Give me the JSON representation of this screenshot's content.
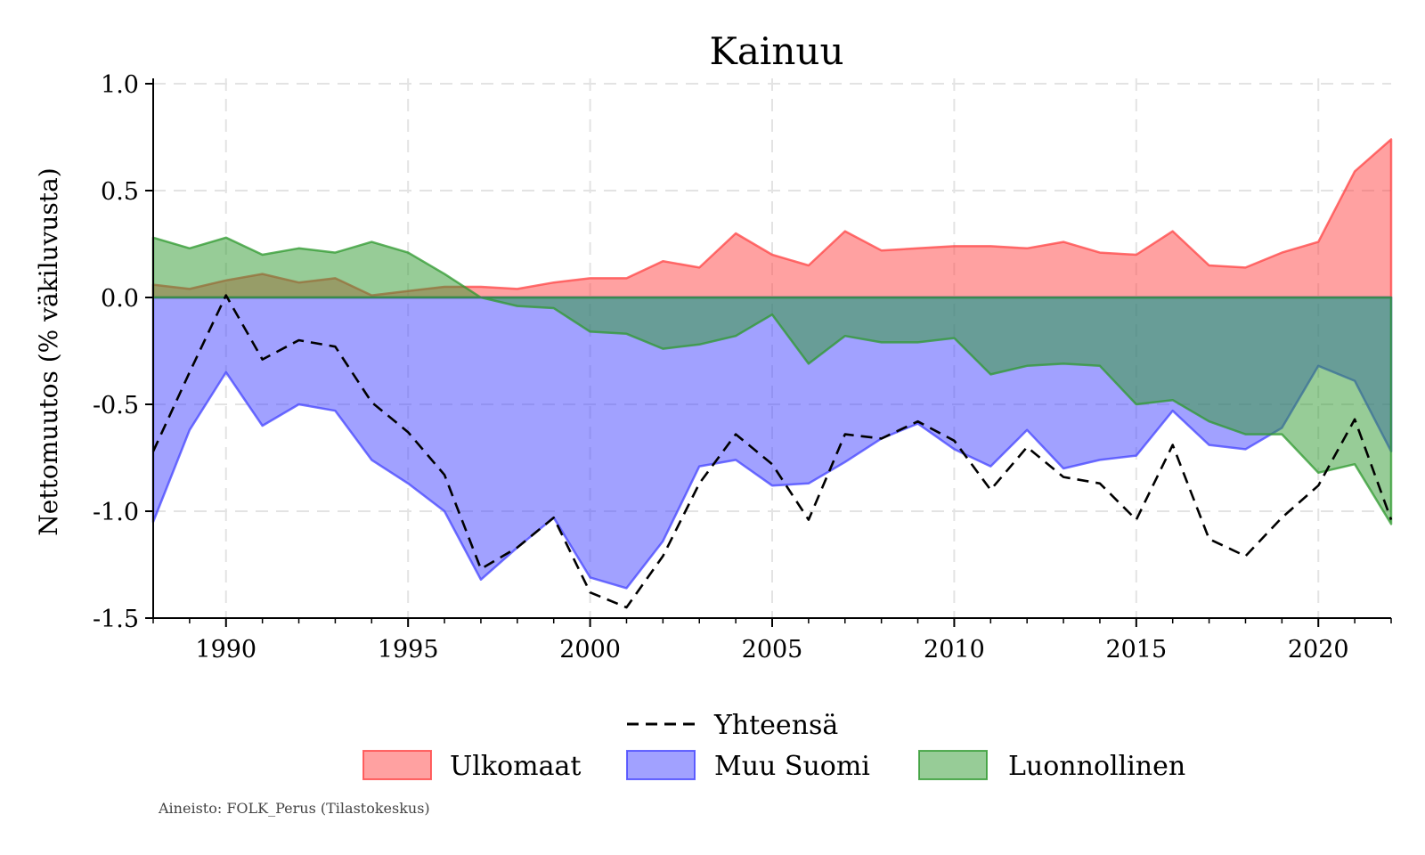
{
  "chart_data": {
    "type": "area",
    "title": "Kainuu",
    "ylabel": "Nettomuutos (% väkiluvusta)",
    "xlabel": "",
    "xlim": [
      1988,
      2022
    ],
    "ylim": [
      -1.5,
      1.0
    ],
    "xticks": [
      "1990",
      "1995",
      "2000",
      "2005",
      "2010",
      "2015",
      "2020"
    ],
    "yticks": [
      "1.0",
      "0.5",
      "0.0",
      "-0.5",
      "-1.0",
      "-1.5"
    ],
    "grid": true,
    "legend_position": "bottom",
    "x": [
      1988,
      1989,
      1990,
      1991,
      1992,
      1993,
      1994,
      1995,
      1996,
      1997,
      1998,
      1999,
      2000,
      2001,
      2002,
      2003,
      2004,
      2005,
      2006,
      2007,
      2008,
      2009,
      2010,
      2011,
      2012,
      2013,
      2014,
      2015,
      2016,
      2017,
      2018,
      2019,
      2020,
      2021,
      2022
    ],
    "series": [
      {
        "name": "Ulkomaat",
        "kind": "area",
        "color": "#ff4444",
        "values": [
          0.06,
          0.04,
          0.08,
          0.11,
          0.07,
          0.09,
          0.01,
          0.03,
          0.05,
          0.05,
          0.04,
          0.07,
          0.09,
          0.09,
          0.17,
          0.14,
          0.3,
          0.2,
          0.15,
          0.31,
          0.22,
          0.23,
          0.24,
          0.24,
          0.23,
          0.26,
          0.21,
          0.2,
          0.31,
          0.15,
          0.14,
          0.21,
          0.26,
          0.59,
          0.74
        ]
      },
      {
        "name": "Muu Suomi",
        "kind": "area",
        "color": "#4444ff",
        "values": [
          -1.05,
          -0.62,
          -0.35,
          -0.6,
          -0.5,
          -0.53,
          -0.76,
          -0.87,
          -1.0,
          -1.32,
          -1.17,
          -1.03,
          -1.31,
          -1.36,
          -1.14,
          -0.79,
          -0.76,
          -0.88,
          -0.87,
          -0.77,
          -0.66,
          -0.59,
          -0.71,
          -0.79,
          -0.62,
          -0.8,
          -0.76,
          -0.74,
          -0.53,
          -0.69,
          -0.71,
          -0.61,
          -0.32,
          -0.39,
          -0.72
        ]
      },
      {
        "name": "Luonnollinen",
        "kind": "area",
        "color": "#2f9a2f",
        "values": [
          0.28,
          0.23,
          0.28,
          0.2,
          0.23,
          0.21,
          0.26,
          0.21,
          0.11,
          0.0,
          -0.04,
          -0.05,
          -0.16,
          -0.17,
          -0.24,
          -0.22,
          -0.18,
          -0.08,
          -0.31,
          -0.18,
          -0.21,
          -0.21,
          -0.19,
          -0.36,
          -0.32,
          -0.31,
          -0.32,
          -0.5,
          -0.48,
          -0.58,
          -0.64,
          -0.64,
          -0.82,
          -0.78,
          -1.06
        ]
      },
      {
        "name": "Yhteensä",
        "kind": "line",
        "color": "#000000",
        "values": [
          -0.72,
          -0.35,
          0.01,
          -0.29,
          -0.2,
          -0.23,
          -0.49,
          -0.63,
          -0.83,
          -1.27,
          -1.17,
          -1.03,
          -1.38,
          -1.45,
          -1.21,
          -0.87,
          -0.64,
          -0.78,
          -1.04,
          -0.64,
          -0.66,
          -0.58,
          -0.67,
          -0.9,
          -0.7,
          -0.84,
          -0.87,
          -1.04,
          -0.69,
          -1.13,
          -1.21,
          -1.03,
          -0.88,
          -0.57,
          -1.04
        ]
      }
    ],
    "source_note": "Aineisto: FOLK_Perus (Tilastokeskus)"
  }
}
